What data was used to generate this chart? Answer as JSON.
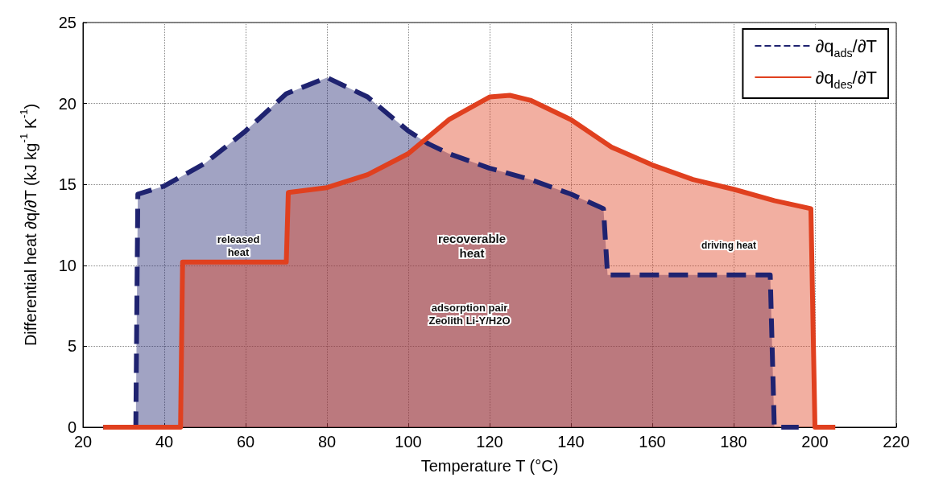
{
  "chart_data": {
    "type": "area",
    "xlabel": "Temperature T (°C)",
    "ylabel": "Differential heat ∂q/∂T (kJ kg$^{-1}$ K$^{-1}$)",
    "xlim": [
      20,
      220
    ],
    "xticks": [
      20,
      40,
      60,
      80,
      100,
      120,
      140,
      160,
      180,
      200,
      220
    ],
    "ylim": [
      0,
      25
    ],
    "yticks": [
      0,
      5,
      10,
      15,
      20,
      25
    ],
    "grid": true,
    "legend": "top right",
    "annotations": [
      "released\nheat",
      "recoverable\nheat",
      "driving heat",
      "adsorption pair\nZeolith Li-Y/H2O"
    ],
    "series": [
      {
        "name": "∂q$_{ads}$/∂T",
        "color": "#1f2370",
        "line_style": "dashed",
        "x": [
          25,
          33,
          33.5,
          40,
          50,
          60,
          70,
          80,
          90,
          100,
          105,
          110,
          120,
          130,
          140,
          148,
          149,
          189,
          190,
          196
        ],
        "values": [
          0,
          0,
          14.4,
          14.9,
          16.3,
          18.3,
          20.6,
          21.6,
          20.4,
          18.3,
          17.5,
          16.9,
          16.0,
          15.3,
          14.4,
          13.5,
          9.4,
          9.4,
          0,
          0
        ]
      },
      {
        "name": "∂q$_{des}$/∂T",
        "color": "#e0401f",
        "line_style": "solid",
        "x": [
          25,
          44,
          44.5,
          70,
          70.5,
          80,
          90,
          100,
          110,
          120,
          125,
          130,
          140,
          150,
          160,
          170,
          180,
          190,
          199,
          200,
          205
        ],
        "values": [
          0,
          0,
          10.2,
          10.2,
          14.5,
          14.8,
          15.6,
          16.9,
          19.0,
          20.4,
          20.5,
          20.2,
          19.0,
          17.3,
          16.2,
          15.3,
          14.7,
          14.0,
          13.5,
          0,
          0
        ]
      }
    ]
  }
}
